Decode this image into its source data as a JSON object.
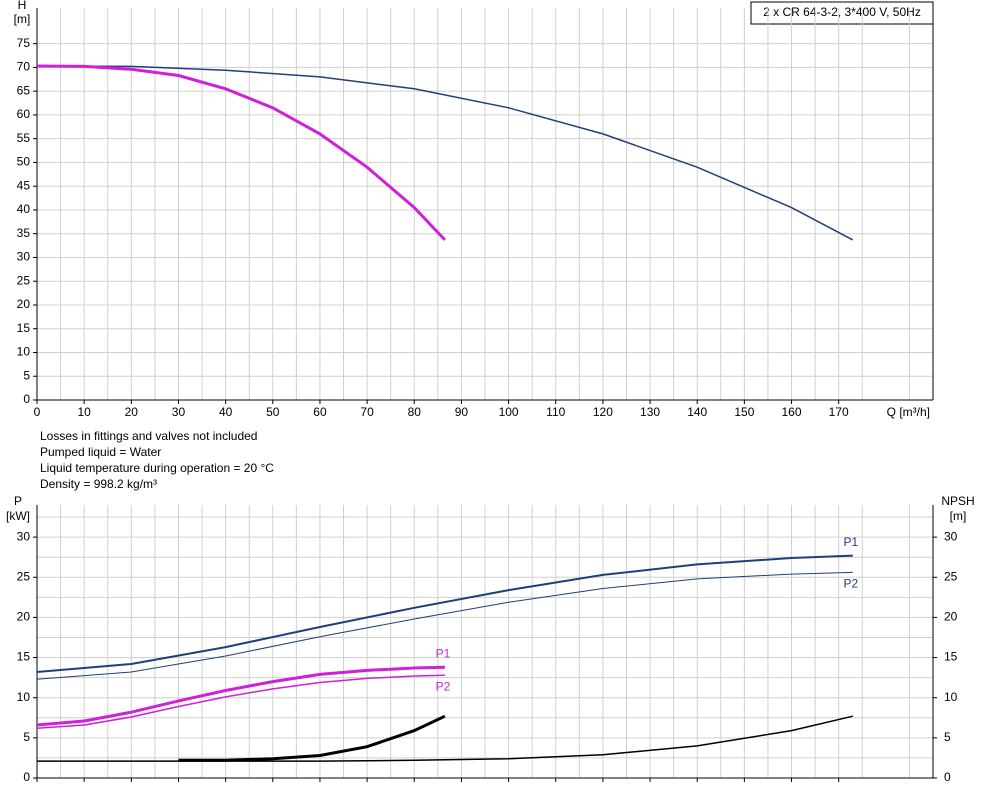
{
  "chart_data": [
    {
      "type": "line",
      "title": "2 x CR 64-3-2, 3*400 V, 50Hz",
      "y_label": "H",
      "y_unit": "[m]",
      "x_label": "Q [m³/h]",
      "xlim": [
        0,
        190
      ],
      "xticks": [
        0,
        10,
        20,
        30,
        40,
        50,
        60,
        70,
        80,
        90,
        100,
        110,
        120,
        130,
        140,
        150,
        160,
        170
      ],
      "ylim": [
        0,
        82.5
      ],
      "yticks": [
        0,
        5,
        10,
        15,
        20,
        25,
        30,
        35,
        40,
        45,
        50,
        55,
        60,
        65,
        70,
        75
      ],
      "grid": true,
      "series": [
        {
          "color": "#1f3f7a",
          "line_width": 1.5,
          "x": [
            0,
            20,
            40,
            60,
            80,
            100,
            120,
            140,
            160,
            173
          ],
          "values": [
            70.3,
            70.2,
            69.4,
            68,
            65.5,
            61.5,
            56,
            49,
            40.5,
            33.7
          ]
        },
        {
          "color": "#d020d8",
          "line_width": 3,
          "x": [
            0,
            10,
            20,
            30,
            40,
            50,
            60,
            70,
            80,
            86.5
          ],
          "values": [
            70.3,
            70.2,
            69.6,
            68.3,
            65.5,
            61.5,
            56,
            49,
            40.5,
            33.7
          ]
        }
      ],
      "annotations": [
        "Losses in fittings and valves not included",
        "Pumped liquid = Water",
        "Liquid temperature during operation = 20 °C",
        "Density = 998.2 kg/m³"
      ]
    },
    {
      "type": "line",
      "y_label": "P",
      "y_unit": "[kW]",
      "y2_label": "NPSH",
      "y2_unit": "[m]",
      "xlim": [
        0,
        190
      ],
      "ylim": [
        0,
        34
      ],
      "yticks": [
        0,
        5,
        10,
        15,
        20,
        25,
        30
      ],
      "y2lim": [
        0,
        34
      ],
      "y2ticks": [
        0,
        5,
        10,
        15,
        20,
        25,
        30
      ],
      "grid": true,
      "series": [
        {
          "name": "P1",
          "color": "#1f3f7a",
          "line_width": 2,
          "label_side": "above",
          "x": [
            0,
            20,
            40,
            60,
            80,
            100,
            120,
            140,
            160,
            173
          ],
          "values": [
            13.2,
            14.2,
            16.3,
            18.8,
            21.2,
            23.4,
            25.3,
            26.6,
            27.4,
            27.7
          ]
        },
        {
          "name": "P2",
          "color": "#1f3f7a",
          "line_width": 1,
          "label_side": "below",
          "x": [
            0,
            20,
            40,
            60,
            80,
            100,
            120,
            140,
            160,
            173
          ],
          "values": [
            12.3,
            13.2,
            15.2,
            17.6,
            19.8,
            21.9,
            23.6,
            24.8,
            25.4,
            25.6
          ]
        },
        {
          "name": "P1",
          "color": "#d020d8",
          "line_width": 3,
          "label_side": "above",
          "x": [
            0,
            10,
            20,
            30,
            40,
            50,
            60,
            70,
            80,
            86.5
          ],
          "values": [
            6.6,
            7.1,
            8.2,
            9.6,
            10.9,
            12.0,
            12.9,
            13.4,
            13.7,
            13.8
          ]
        },
        {
          "name": "P2",
          "color": "#d020d8",
          "line_width": 1.5,
          "label_side": "below",
          "x": [
            0,
            10,
            20,
            30,
            40,
            50,
            60,
            70,
            80,
            86.5
          ],
          "values": [
            6.2,
            6.6,
            7.6,
            8.9,
            10.1,
            11.1,
            11.9,
            12.4,
            12.7,
            12.8
          ]
        },
        {
          "color": "#000000",
          "line_width": 1.5,
          "axis": "y2",
          "x": [
            0,
            20,
            40,
            60,
            80,
            100,
            120,
            140,
            160,
            173
          ],
          "values": [
            2.1,
            2.1,
            2.1,
            2.1,
            2.2,
            2.4,
            2.9,
            4.0,
            5.9,
            7.7
          ]
        },
        {
          "color": "#000000",
          "line_width": 3,
          "axis": "y2",
          "x": [
            30,
            40,
            50,
            60,
            70,
            80,
            86.5
          ],
          "values": [
            2.2,
            2.2,
            2.4,
            2.8,
            3.9,
            5.9,
            7.7
          ]
        }
      ]
    }
  ]
}
